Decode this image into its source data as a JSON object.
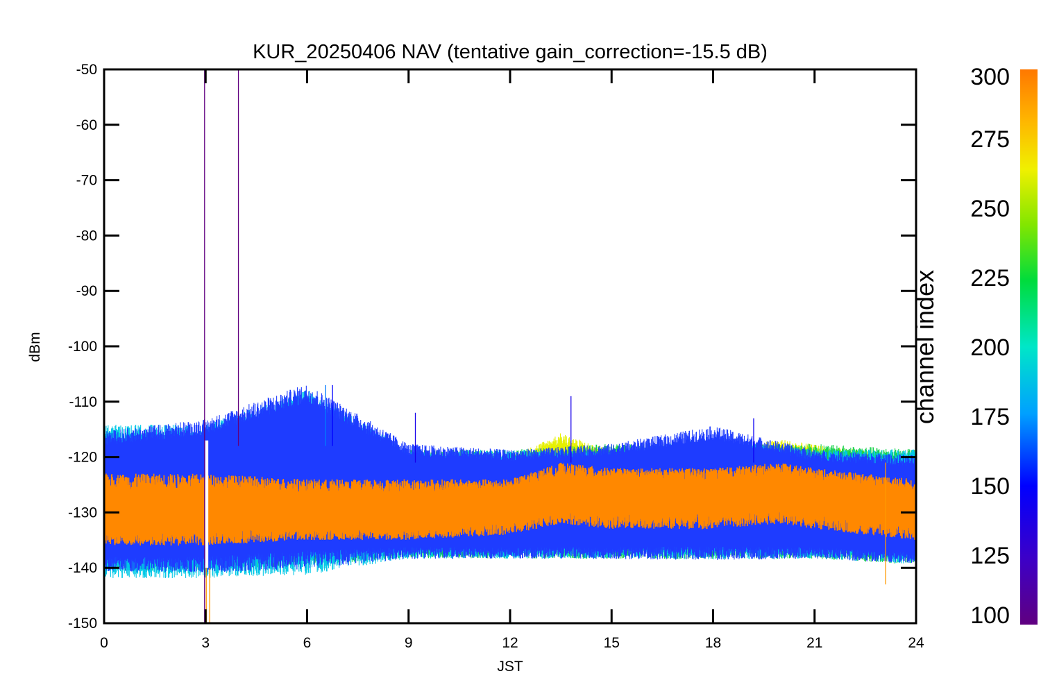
{
  "chart_data": {
    "type": "line",
    "title": "KUR_20250406 NAV (tentative gain_correction=-15.5 dB)",
    "xlabel": "JST",
    "ylabel": "dBm",
    "xlim": [
      0,
      24
    ],
    "ylim": [
      -150,
      -50
    ],
    "x_ticks": [
      0,
      3,
      6,
      9,
      12,
      15,
      18,
      21,
      24
    ],
    "y_ticks": [
      -50,
      -60,
      -70,
      -80,
      -90,
      -100,
      -110,
      -120,
      -130,
      -140,
      -150
    ],
    "grid": false,
    "color_by": "channel index",
    "colorbar": {
      "label": "channel index",
      "range": [
        100,
        300
      ],
      "ticks": [
        300,
        275,
        250,
        225,
        200,
        175,
        150,
        125,
        100
      ],
      "colormap": "rainbow"
    },
    "series": [
      {
        "channel_index_range": [
          280,
          300
        ],
        "color": "#ff8c00",
        "x": [
          0,
          3,
          6,
          9,
          12,
          13.5,
          15,
          18,
          20,
          21,
          24
        ],
        "y_upper": [
          -123,
          -123,
          -124,
          -124,
          -124,
          -121,
          -122,
          -122,
          -121,
          -122,
          -124
        ],
        "y_center": [
          -130,
          -130,
          -130,
          -130,
          -129,
          -127,
          -127,
          -127,
          -126,
          -127,
          -129
        ],
        "y_lower": [
          -136,
          -136,
          -135,
          -135,
          -134,
          -132,
          -133,
          -133,
          -132,
          -133,
          -135
        ]
      },
      {
        "channel_index_range": [
          240,
          280
        ],
        "color": "#e6f000",
        "x": [
          0,
          3,
          6,
          9,
          12,
          13.5,
          15,
          18,
          20,
          21,
          24
        ],
        "y_upper": [
          -121,
          -121,
          -121,
          -122,
          -121,
          -117,
          -120,
          -120,
          -118,
          -119,
          -121
        ],
        "y_lower": [
          -137,
          -137,
          -136,
          -136,
          -135,
          -134,
          -135,
          -135,
          -134,
          -135,
          -136
        ]
      },
      {
        "channel_index_range": [
          180,
          240
        ],
        "color": "#19d24b",
        "x": [
          0,
          3,
          6,
          9,
          12,
          15,
          18,
          21,
          24
        ],
        "y_upper": [
          -120,
          -120,
          -119,
          -120,
          -120,
          -119,
          -119,
          -119,
          -120
        ],
        "y_lower": [
          -139,
          -139,
          -138,
          -137,
          -137,
          -137,
          -137,
          -137,
          -138
        ]
      },
      {
        "channel_index_range": [
          150,
          180
        ],
        "color": "#00c8e6",
        "x": [
          0,
          3,
          6,
          9,
          12,
          15,
          18,
          21,
          24
        ],
        "y_upper": [
          -116,
          -116,
          -110,
          -120,
          -120,
          -120,
          -118,
          -120,
          -120
        ],
        "y_lower": [
          -140,
          -140,
          -139,
          -137,
          -137,
          -137,
          -137,
          -137,
          -138
        ]
      },
      {
        "channel_index_range": [
          110,
          150
        ],
        "color": "#1e3cff",
        "x": [
          0,
          3,
          6,
          9,
          12,
          15,
          18,
          21,
          24
        ],
        "y_upper": [
          -117,
          -115,
          -109,
          -119,
          -120,
          -119,
          -116,
          -120,
          -121
        ],
        "y_lower": [
          -139,
          -139,
          -138,
          -137,
          -137,
          -137,
          -137,
          -137,
          -138
        ]
      }
    ],
    "spikes": [
      {
        "x": 2.97,
        "y_top": -50,
        "y_bottom": -150,
        "channel_index": 100
      },
      {
        "x": 3.97,
        "y_top": -50,
        "y_bottom": -118,
        "channel_index": 100
      },
      {
        "x": 3.02,
        "y_top": -140,
        "y_bottom": -150,
        "channel_index": 290
      },
      {
        "x": 3.12,
        "y_top": -140,
        "y_bottom": -150,
        "channel_index": 290
      },
      {
        "x": 6.55,
        "y_top": -107,
        "y_bottom": -118,
        "channel_index": 170
      },
      {
        "x": 6.75,
        "y_top": -107,
        "y_bottom": -118,
        "channel_index": 150
      },
      {
        "x": 9.2,
        "y_top": -112,
        "y_bottom": -121,
        "channel_index": 140
      },
      {
        "x": 13.8,
        "y_top": -109,
        "y_bottom": -121,
        "channel_index": 140
      },
      {
        "x": 19.2,
        "y_top": -113,
        "y_bottom": -121,
        "channel_index": 145
      },
      {
        "x": 23.1,
        "y_top": -121,
        "y_bottom": -143,
        "channel_index": 290
      }
    ],
    "data_gap": {
      "x_start": 2.99,
      "x_end": 3.08
    }
  }
}
